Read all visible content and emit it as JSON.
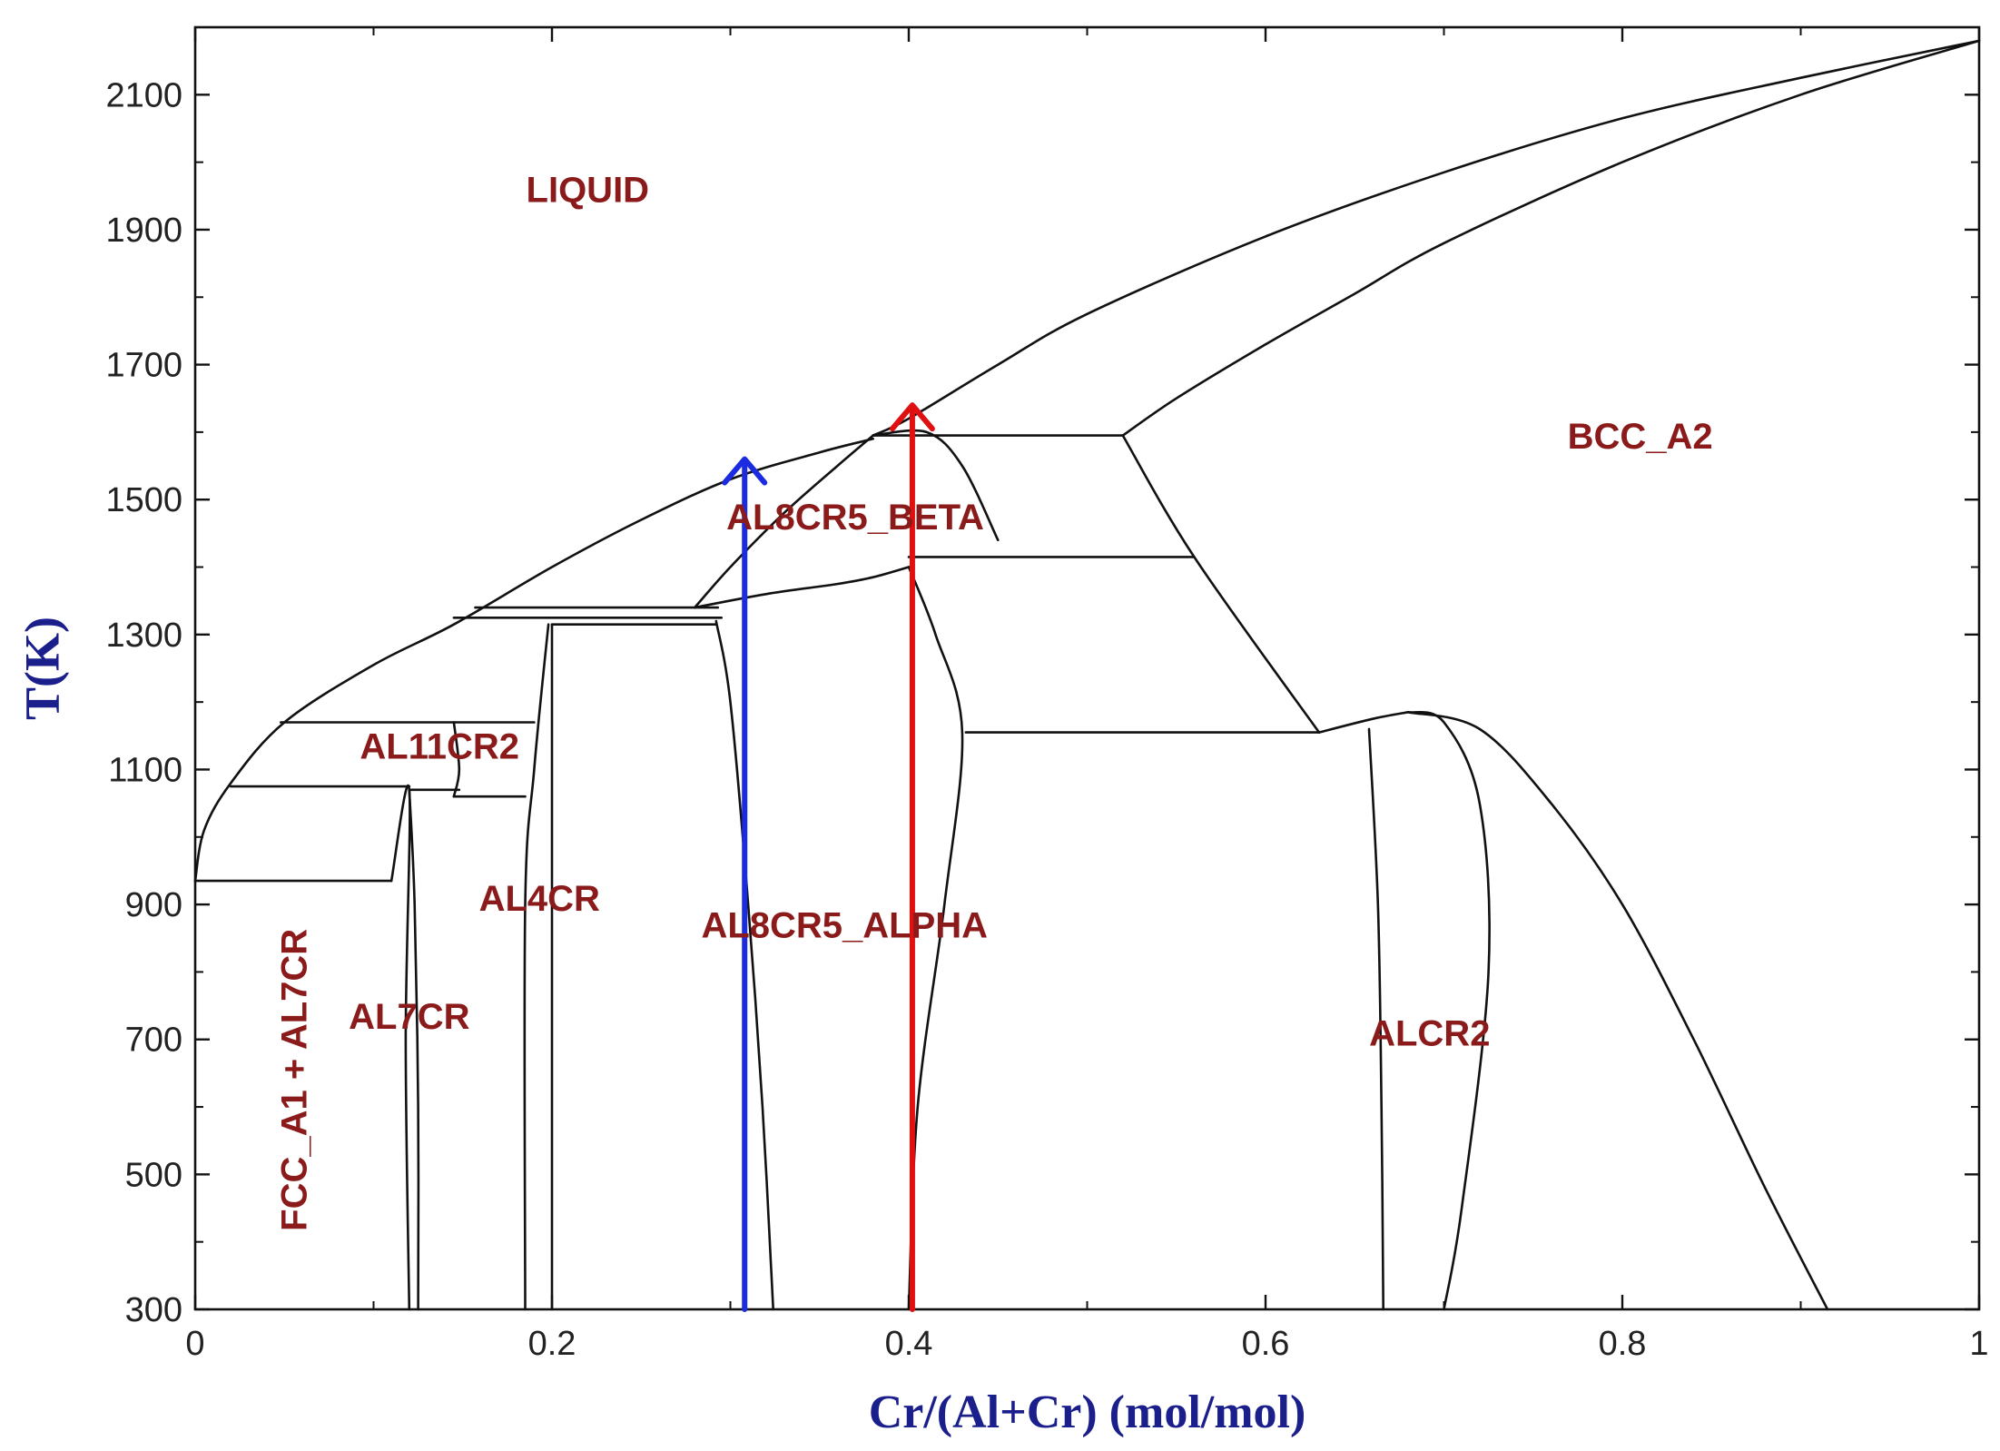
{
  "chart_data": {
    "type": "line",
    "title": "",
    "xlabel": "Cr/(Al+Cr) (mol/mol)",
    "ylabel": "T(K)",
    "xlim": [
      0,
      1
    ],
    "ylim": [
      300,
      2200
    ],
    "x_ticks": [
      0,
      0.2,
      0.4,
      0.6,
      0.8,
      1
    ],
    "x_tick_labels": [
      "0",
      "0.2",
      "0.4",
      "0.6",
      "0.8",
      "1"
    ],
    "y_ticks": [
      300,
      500,
      700,
      900,
      1100,
      1300,
      1500,
      1700,
      1900,
      2100
    ],
    "y_tick_labels": [
      "300",
      "500",
      "700",
      "900",
      "1100",
      "1300",
      "1500",
      "1700",
      "1900",
      "2100"
    ],
    "grid": false,
    "legend": "none",
    "colors": {
      "boundary": "#111111",
      "labels": "#8b1a1a",
      "axis_titles": "#1a1f8c",
      "arrow_blue": "#1a2be0",
      "arrow_red": "#e01010"
    },
    "phase_regions": [
      {
        "name": "LIQUID",
        "x": 0.22,
        "y": 1955
      },
      {
        "name": "BCC_A2",
        "x": 0.81,
        "y": 1590
      },
      {
        "name": "AL8CR5_BETA",
        "x": 0.37,
        "y": 1470
      },
      {
        "name": "AL11CR2",
        "x": 0.137,
        "y": 1130
      },
      {
        "name": "AL4CR",
        "x": 0.193,
        "y": 905
      },
      {
        "name": "AL8CR5_ALPHA",
        "x": 0.364,
        "y": 865
      },
      {
        "name": "AL7CR",
        "x": 0.12,
        "y": 730
      },
      {
        "name": "ALCR2",
        "x": 0.692,
        "y": 705
      },
      {
        "name": "FCC_A1 + AL7CR",
        "x": 0.057,
        "y": 640,
        "rotated": true
      }
    ],
    "arrows": [
      {
        "name": "blue",
        "x": 0.308,
        "y_start": 300,
        "y_end": 1560
      },
      {
        "name": "red",
        "x": 0.402,
        "y_start": 300,
        "y_end": 1640
      }
    ],
    "boundaries": [
      {
        "name": "liquidus-left",
        "x": [
          0,
          0.005,
          0.02,
          0.05,
          0.1,
          0.145,
          0.2,
          0.25,
          0.3,
          0.35,
          0.38
        ],
        "y": [
          935,
          1010,
          1080,
          1170,
          1255,
          1315,
          1400,
          1470,
          1530,
          1570,
          1590
        ]
      },
      {
        "name": "liquidus-upper",
        "x": [
          0.38,
          0.4,
          0.45,
          0.5,
          0.6,
          0.7,
          0.8,
          0.9,
          1.0
        ],
        "y": [
          1595,
          1620,
          1700,
          1775,
          1890,
          1985,
          2065,
          2125,
          2180
        ]
      },
      {
        "name": "solidus-right",
        "x": [
          0.52,
          0.55,
          0.6,
          0.65,
          0.7,
          0.8,
          0.9,
          1.0
        ],
        "y": [
          1595,
          1650,
          1730,
          1805,
          1880,
          2000,
          2100,
          2180
        ]
      },
      {
        "name": "beta-left",
        "x": [
          0.28,
          0.3,
          0.33,
          0.36,
          0.38
        ],
        "y": [
          1340,
          1400,
          1480,
          1550,
          1595
        ]
      },
      {
        "name": "beta-bottom",
        "x": [
          0.28,
          0.32,
          0.36,
          0.38,
          0.4
        ],
        "y": [
          1340,
          1360,
          1375,
          1385,
          1400
        ]
      },
      {
        "name": "beta-right",
        "x": [
          0.38,
          0.41,
          0.43,
          0.45
        ],
        "y": [
          1595,
          1600,
          1550,
          1440
        ]
      },
      {
        "name": "peritectic-1595",
        "x": [
          0.38,
          0.52
        ],
        "y": [
          1595,
          1595
        ]
      },
      {
        "name": "eutectoid-1415",
        "x": [
          0.4,
          0.56
        ],
        "y": [
          1415,
          1415
        ]
      },
      {
        "name": "bcc-solvus",
        "x": [
          0.52,
          0.56,
          0.63
        ],
        "y": [
          1595,
          1415,
          1155
        ]
      },
      {
        "name": "alpha-right",
        "x": [
          0.4,
          0.415,
          0.43,
          0.42,
          0.405,
          0.4
        ],
        "y": [
          1400,
          1300,
          1155,
          900,
          600,
          300
        ]
      },
      {
        "name": "alcr2-1155",
        "x": [
          0.432,
          0.63
        ],
        "y": [
          1155,
          1155
        ]
      },
      {
        "name": "alcr2-left",
        "x": [
          0.658,
          0.663,
          0.665,
          0.666
        ],
        "y": [
          1160,
          900,
          600,
          300
        ]
      },
      {
        "name": "alcr2-dome-left",
        "x": [
          0.63,
          0.66,
          0.68
        ],
        "y": [
          1155,
          1175,
          1185
        ]
      },
      {
        "name": "alcr2-dome-right",
        "x": [
          0.68,
          0.7,
          0.72,
          0.725,
          0.71,
          0.7
        ],
        "y": [
          1185,
          1170,
          1050,
          800,
          450,
          300
        ]
      },
      {
        "name": "bcc-miscibility",
        "x": [
          0.68,
          0.72,
          0.76,
          0.8,
          0.84,
          0.88,
          0.915
        ],
        "y": [
          1185,
          1160,
          1050,
          900,
          700,
          480,
          300
        ]
      },
      {
        "name": "alpha-left",
        "x": [
          0.292,
          0.3,
          0.31,
          0.318,
          0.324
        ],
        "y": [
          1320,
          1200,
          900,
          600,
          300
        ]
      },
      {
        "name": "al11cr2-ledge",
        "x": [
          0.145,
          0.295
        ],
        "y": [
          1325,
          1325
        ]
      },
      {
        "name": "al11cr2-ledge-2",
        "x": [
          0.157,
          0.293
        ],
        "y": [
          1340,
          1340
        ]
      },
      {
        "name": "al4cr-top",
        "x": [
          0.2,
          0.292
        ],
        "y": [
          1315,
          1315
        ]
      },
      {
        "name": "al4cr-left",
        "x": [
          0.198,
          0.19,
          0.185,
          0.185
        ],
        "y": [
          1315,
          1100,
          900,
          300
        ]
      },
      {
        "name": "al4cr-right",
        "x": [
          0.2,
          0.2,
          0.2
        ],
        "y": [
          1315,
          900,
          300
        ]
      },
      {
        "name": "al11cr2-1170",
        "x": [
          0.048,
          0.19
        ],
        "y": [
          1170,
          1170
        ]
      },
      {
        "name": "al11cr2-1060",
        "x": [
          0.145,
          0.185
        ],
        "y": [
          1060,
          1060
        ]
      },
      {
        "name": "al11cr2-left",
        "x": [
          0.145,
          0.148,
          0.145
        ],
        "y": [
          1170,
          1100,
          1060
        ]
      },
      {
        "name": "al7cr-1075",
        "x": [
          0.02,
          0.12
        ],
        "y": [
          1075,
          1075
        ]
      },
      {
        "name": "al7cr-1070",
        "x": [
          0.12,
          0.148
        ],
        "y": [
          1070,
          1070
        ]
      },
      {
        "name": "al7cr-left",
        "x": [
          0.11,
          0.12,
          0.118,
          0.12
        ],
        "y": [
          935,
          1070,
          700,
          300
        ]
      },
      {
        "name": "al7cr-right",
        "x": [
          0.12,
          0.123,
          0.125,
          0.125
        ],
        "y": [
          1070,
          900,
          600,
          300
        ]
      },
      {
        "name": "fcc-eutectic-935",
        "x": [
          0,
          0.11
        ],
        "y": [
          935,
          935
        ]
      }
    ]
  }
}
